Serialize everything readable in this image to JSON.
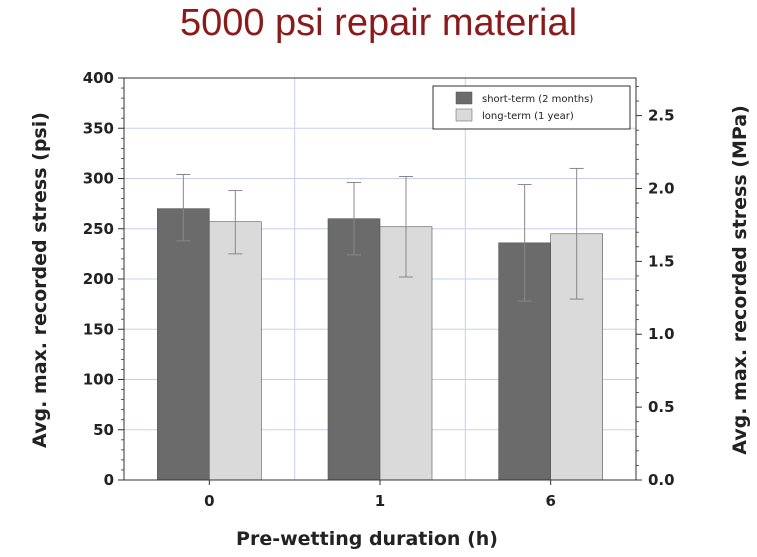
{
  "chart_data": {
    "type": "bar",
    "title": "5000 psi repair material",
    "xlabel": "Pre-wetting duration (h)",
    "ylabel": "Avg. max. recorded stress (psi)",
    "ylabel_right": "Avg. max. recorded stress (MPa)",
    "categories": [
      "0",
      "1",
      "6"
    ],
    "ylim": [
      0,
      400
    ],
    "yticks": [
      0,
      50,
      100,
      150,
      200,
      250,
      300,
      350,
      400
    ],
    "ylim_right": [
      0,
      2.758
    ],
    "yticks_right": [
      "0.0",
      "0.5",
      "1.0",
      "1.5",
      "2.0",
      "2.5"
    ],
    "grid": true,
    "legend_position": "top-right",
    "series": [
      {
        "name": "short-term (2 months)",
        "color": "#6b6b6b",
        "values": [
          270,
          260,
          236
        ],
        "error_low": [
          238,
          224,
          178
        ],
        "error_high": [
          304,
          296,
          294
        ]
      },
      {
        "name": "long-term (1 year)",
        "color": "#dadada",
        "values": [
          257,
          252,
          245
        ],
        "error_low": [
          225,
          202,
          180
        ],
        "error_high": [
          288,
          302,
          310
        ]
      }
    ]
  }
}
